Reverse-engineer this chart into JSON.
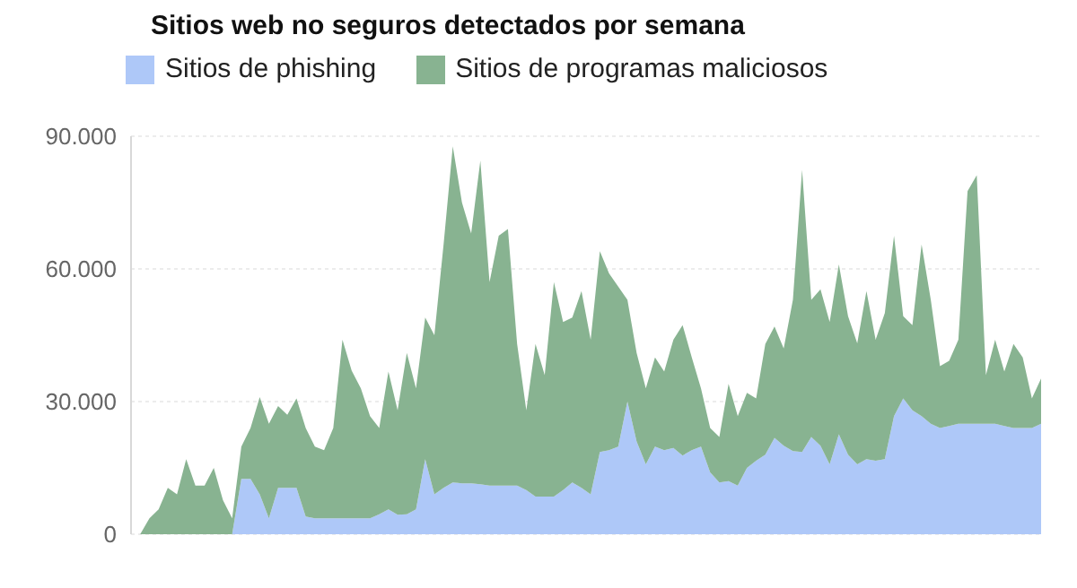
{
  "chart_data": {
    "type": "area",
    "title": "Sitios web no seguros detectados por semana",
    "stacked": true,
    "legend": "top left",
    "grid": "y",
    "categories": [
      null,
      null,
      null,
      null,
      null,
      null,
      null,
      null,
      null,
      null,
      null,
      null,
      null,
      null,
      null,
      null,
      null,
      null,
      null,
      null,
      null,
      null,
      null,
      null,
      null,
      null,
      null,
      null,
      null,
      null,
      null,
      null,
      null,
      null,
      null,
      null,
      null,
      null,
      null,
      null,
      null,
      null,
      null,
      null,
      null,
      null,
      null,
      null,
      null,
      null,
      null,
      null,
      null,
      null,
      null,
      null,
      null,
      null,
      null,
      null,
      null,
      null,
      null,
      null,
      null,
      null,
      null,
      null,
      null,
      null,
      null,
      null,
      null,
      null,
      null,
      null,
      null,
      null,
      null,
      null,
      null,
      null,
      null,
      null,
      null,
      null,
      null,
      null,
      null,
      null,
      null,
      null,
      null,
      null,
      null,
      null,
      null,
      null,
      null,
      null
    ],
    "ylim": [
      0,
      90000
    ],
    "yticks": [
      {
        "value": 0,
        "label": "0"
      },
      {
        "value": 30000,
        "label": "30.000"
      },
      {
        "value": 60000,
        "label": "60.000"
      },
      {
        "value": 90000,
        "label": "90.000"
      }
    ],
    "series": [
      {
        "name": "Sitios de phishing",
        "color": "#aec8f8",
        "values": [
          0,
          0,
          0,
          0,
          0,
          0,
          0,
          0,
          0,
          0,
          0,
          0,
          12500,
          12500,
          9000,
          3600,
          10500,
          10500,
          10500,
          4000,
          3600,
          3600,
          3600,
          3600,
          3600,
          3600,
          3600,
          4500,
          5600,
          4400,
          4500,
          5600,
          17000,
          9000,
          10500,
          11700,
          11500,
          11500,
          11300,
          11000,
          11000,
          11000,
          11000,
          10000,
          8500,
          8500,
          8500,
          10000,
          11700,
          10500,
          9000,
          18600,
          19000,
          19800,
          30000,
          21000,
          15800,
          19800,
          19000,
          19500,
          17800,
          19000,
          19800,
          14000,
          11700,
          12000,
          11000,
          15000,
          16600,
          18000,
          21800,
          20000,
          18800,
          18600,
          22000,
          20000,
          15800,
          22600,
          18000,
          15800,
          17000,
          16600,
          17000,
          26700,
          30700,
          28000,
          26700,
          25000,
          24000,
          24500,
          25000,
          25000,
          25000,
          25000,
          25000,
          24500,
          24000,
          24000,
          24000,
          25000
        ]
      },
      {
        "name": "Sitios de programas maliciosos",
        "color": "#88b391",
        "values": [
          0,
          0,
          3600,
          5600,
          10500,
          9000,
          17000,
          11000,
          11000,
          15000,
          7700,
          3600,
          7300,
          11500,
          22000,
          21400,
          18500,
          16500,
          20200,
          20000,
          16200,
          15400,
          20400,
          40400,
          33400,
          29400,
          23100,
          19500,
          31200,
          23600,
          36500,
          27400,
          32000,
          36000,
          55000,
          76000,
          63500,
          56500,
          73200,
          46000,
          56500,
          58000,
          32000,
          18000,
          34500,
          27500,
          48500,
          38000,
          37300,
          44500,
          35000,
          45400,
          40000,
          36200,
          23000,
          20000,
          17200,
          20200,
          17800,
          24500,
          29500,
          21000,
          13200,
          10000,
          10300,
          22000,
          15700,
          17000,
          14100,
          25000,
          25200,
          22000,
          34200,
          63800,
          31000,
          35400,
          32200,
          38400,
          31300,
          27400,
          38000,
          27400,
          33000,
          40800,
          18600,
          19300,
          38800,
          28000,
          14000,
          14700,
          19000,
          52600,
          56200,
          11000,
          19000,
          12300,
          19000,
          16000,
          6700,
          10200
        ]
      }
    ]
  }
}
